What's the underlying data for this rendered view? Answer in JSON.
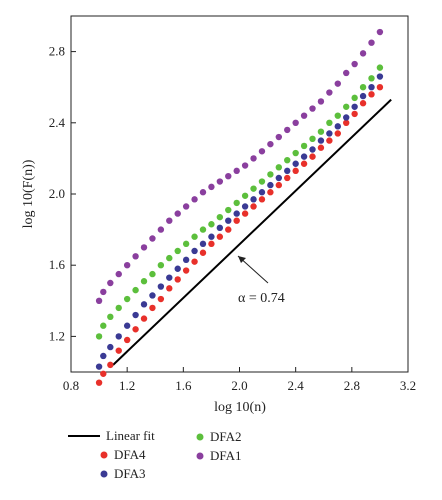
{
  "chart_data": {
    "type": "scatter",
    "xlabel": "log 10(n)",
    "ylabel": "log 10(F(n))",
    "xlim": [
      0.8,
      3.2
    ],
    "ylim": [
      1.0,
      3.0
    ],
    "x_ticks": [
      "0.8",
      "1.2",
      "1.6",
      "2.0",
      "2.4",
      "2.8",
      "3.2"
    ],
    "y_ticks": [
      "1.2",
      "1.6",
      "2.0",
      "2.4",
      "2.8"
    ],
    "grid": false,
    "legend_position": "bottom",
    "annotation": "α = 0.74",
    "series": [
      {
        "name": "Linear fit",
        "kind": "line",
        "color": "#000000",
        "x": [
          1.1,
          3.08
        ],
        "y": [
          1.04,
          2.53
        ]
      },
      {
        "name": "DFA4",
        "kind": "points",
        "color": "#e8302a",
        "x": [
          1.0,
          1.03,
          1.08,
          1.14,
          1.2,
          1.26,
          1.32,
          1.38,
          1.44,
          1.5,
          1.56,
          1.62,
          1.68,
          1.74,
          1.8,
          1.86,
          1.92,
          1.98,
          2.04,
          2.1,
          2.16,
          2.22,
          2.28,
          2.34,
          2.4,
          2.46,
          2.52,
          2.58,
          2.64,
          2.7,
          2.76,
          2.82,
          2.88,
          2.94,
          3.0
        ],
        "y": [
          0.94,
          0.99,
          1.04,
          1.12,
          1.18,
          1.24,
          1.3,
          1.36,
          1.41,
          1.47,
          1.52,
          1.57,
          1.62,
          1.67,
          1.72,
          1.76,
          1.8,
          1.85,
          1.89,
          1.93,
          1.97,
          2.01,
          2.05,
          2.09,
          2.13,
          2.17,
          2.21,
          2.26,
          2.3,
          2.34,
          2.4,
          2.45,
          2.51,
          2.56,
          2.6
        ]
      },
      {
        "name": "DFA3",
        "kind": "points",
        "color": "#3a3a94",
        "x": [
          1.0,
          1.03,
          1.08,
          1.14,
          1.2,
          1.26,
          1.32,
          1.38,
          1.44,
          1.5,
          1.56,
          1.62,
          1.68,
          1.74,
          1.8,
          1.86,
          1.92,
          1.98,
          2.04,
          2.1,
          2.16,
          2.22,
          2.28,
          2.34,
          2.4,
          2.46,
          2.52,
          2.58,
          2.64,
          2.7,
          2.76,
          2.82,
          2.88,
          2.94,
          3.0
        ],
        "y": [
          1.03,
          1.09,
          1.14,
          1.2,
          1.26,
          1.32,
          1.38,
          1.43,
          1.48,
          1.53,
          1.58,
          1.63,
          1.68,
          1.72,
          1.76,
          1.81,
          1.85,
          1.89,
          1.93,
          1.97,
          2.01,
          2.05,
          2.09,
          2.13,
          2.17,
          2.21,
          2.25,
          2.3,
          2.34,
          2.38,
          2.43,
          2.49,
          2.55,
          2.6,
          2.66
        ]
      },
      {
        "name": "DFA2",
        "kind": "points",
        "color": "#5cbf3c",
        "x": [
          1.0,
          1.03,
          1.08,
          1.14,
          1.2,
          1.26,
          1.32,
          1.38,
          1.44,
          1.5,
          1.56,
          1.62,
          1.68,
          1.74,
          1.8,
          1.86,
          1.92,
          1.98,
          2.04,
          2.1,
          2.16,
          2.22,
          2.28,
          2.34,
          2.4,
          2.46,
          2.52,
          2.58,
          2.64,
          2.7,
          2.76,
          2.82,
          2.88,
          2.94,
          3.0
        ],
        "y": [
          1.2,
          1.26,
          1.31,
          1.36,
          1.41,
          1.46,
          1.51,
          1.55,
          1.6,
          1.64,
          1.68,
          1.72,
          1.76,
          1.8,
          1.83,
          1.87,
          1.91,
          1.95,
          1.99,
          2.03,
          2.07,
          2.11,
          2.15,
          2.19,
          2.23,
          2.27,
          2.31,
          2.35,
          2.4,
          2.44,
          2.49,
          2.54,
          2.6,
          2.65,
          2.71
        ]
      },
      {
        "name": "DFA1",
        "kind": "points",
        "color": "#8a3f9e",
        "x": [
          1.0,
          1.03,
          1.08,
          1.14,
          1.2,
          1.26,
          1.32,
          1.38,
          1.44,
          1.5,
          1.56,
          1.62,
          1.68,
          1.74,
          1.8,
          1.86,
          1.92,
          1.98,
          2.04,
          2.1,
          2.16,
          2.22,
          2.28,
          2.34,
          2.4,
          2.46,
          2.52,
          2.58,
          2.64,
          2.7,
          2.76,
          2.82,
          2.88,
          2.94,
          3.0
        ],
        "y": [
          1.4,
          1.45,
          1.5,
          1.55,
          1.6,
          1.65,
          1.7,
          1.75,
          1.8,
          1.85,
          1.89,
          1.93,
          1.97,
          2.01,
          2.04,
          2.07,
          2.1,
          2.13,
          2.16,
          2.2,
          2.24,
          2.28,
          2.32,
          2.36,
          2.4,
          2.44,
          2.48,
          2.52,
          2.57,
          2.62,
          2.68,
          2.73,
          2.79,
          2.85,
          2.91
        ]
      }
    ]
  }
}
